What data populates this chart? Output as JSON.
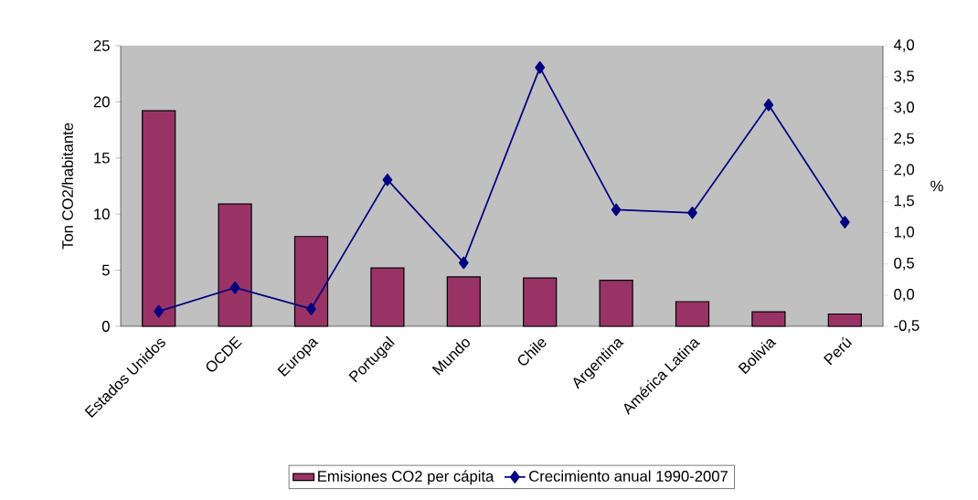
{
  "chart_data": {
    "type": "bar",
    "categories": [
      "Estados Unidos",
      "OCDE",
      "Europa",
      "Portugal",
      "Mundo",
      "Chile",
      "Argentina",
      "América Latina",
      "Bolivia",
      "Perú"
    ],
    "ylabel": "Ton CO2/habitante",
    "y2label": "%",
    "ylim": [
      0,
      25
    ],
    "yticks": [
      0,
      5,
      10,
      15,
      20,
      25
    ],
    "y2lim": [
      -0.5,
      4.0
    ],
    "y2ticks": [
      {
        "value": -0.5,
        "label": "-0,5"
      },
      {
        "value": 0,
        "label": "0,0"
      },
      {
        "value": 0.5,
        "label": "0,5"
      },
      {
        "value": 1,
        "label": "1,0"
      },
      {
        "value": 1.5,
        "label": "1,5"
      },
      {
        "value": 2,
        "label": "2,0"
      },
      {
        "value": 2.5,
        "label": "2,5"
      },
      {
        "value": 3,
        "label": "3,0"
      },
      {
        "value": 3.5,
        "label": "3,5"
      },
      {
        "value": 4,
        "label": "4,0"
      }
    ],
    "legend": "bottom",
    "grid": false,
    "series": [
      {
        "name": "Emisiones CO2 per cápita",
        "color": "#993366",
        "values": [
          19.2,
          10.9,
          8.0,
          5.2,
          4.4,
          4.3,
          4.1,
          2.2,
          1.3,
          1.1
        ]
      },
      {
        "name": "Crecimiento anual 1990-2007",
        "type": "line",
        "axis": "y2",
        "marker": "diamond",
        "line_style": "solid",
        "color": "#000080",
        "values": [
          -0.26,
          0.12,
          -0.22,
          1.85,
          0.52,
          3.65,
          1.37,
          1.32,
          3.05,
          1.17
        ]
      }
    ]
  }
}
